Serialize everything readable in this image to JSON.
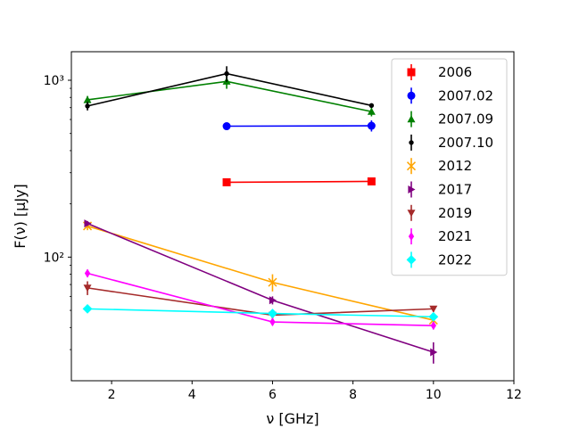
{
  "chart_data": {
    "type": "line",
    "title": "",
    "xlabel": "ν [GHz]",
    "ylabel": "F(ν) [μJy]",
    "xlim": [
      1,
      12
    ],
    "ylim": [
      20,
      1450
    ],
    "yscale": "log",
    "x_ticks": [
      2,
      4,
      6,
      8,
      10,
      12
    ],
    "x_tick_labels": [
      "2",
      "4",
      "6",
      "8",
      "10",
      "12"
    ],
    "y_ticks": [
      100,
      1000
    ],
    "y_tick_labels": [
      "10²",
      "10³"
    ],
    "legend_position": "top-right",
    "series": [
      {
        "name": "2006",
        "color": "#ff0000",
        "marker": "square",
        "x": [
          4.86,
          8.46
        ],
        "values": [
          265,
          268
        ],
        "errors": [
          12,
          12
        ]
      },
      {
        "name": "2007.02",
        "color": "#0000ff",
        "marker": "circle",
        "x": [
          4.86,
          8.46
        ],
        "values": [
          550,
          553
        ],
        "errors": [
          20,
          40
        ]
      },
      {
        "name": "2007.09",
        "color": "#008000",
        "marker": "triangle-up",
        "x": [
          1.4,
          4.86,
          8.46
        ],
        "values": [
          775,
          985,
          665
        ],
        "errors": [
          40,
          90,
          40
        ]
      },
      {
        "name": "2007.10",
        "color": "#000000",
        "marker": "point",
        "x": [
          1.4,
          4.86,
          8.46
        ],
        "values": [
          715,
          1090,
          720
        ],
        "errors": [
          40,
          110,
          20
        ]
      },
      {
        "name": "2012",
        "color": "#ffa500",
        "marker": "x",
        "x": [
          1.4,
          6.0,
          10.0
        ],
        "values": [
          150,
          72,
          44
        ],
        "errors": [
          8,
          8,
          4
        ]
      },
      {
        "name": "2017",
        "color": "#800080",
        "marker": "triangle-right",
        "x": [
          1.4,
          6.0,
          10.0
        ],
        "values": [
          155,
          57,
          29
        ],
        "errors": [
          5,
          3,
          4
        ]
      },
      {
        "name": "2019",
        "color": "#a52a2a",
        "marker": "triangle-down",
        "x": [
          1.4,
          6.0,
          10.0
        ],
        "values": [
          67,
          47,
          51
        ],
        "errors": [
          6,
          2,
          2
        ]
      },
      {
        "name": "2021",
        "color": "#ff00ff",
        "marker": "thin-diamond",
        "x": [
          1.4,
          6.0,
          10.0
        ],
        "values": [
          81,
          43,
          41
        ],
        "errors": [
          4,
          2,
          2
        ]
      },
      {
        "name": "2022",
        "color": "#00ffff",
        "marker": "diamond",
        "x": [
          1.4,
          6.0,
          10.0
        ],
        "values": [
          51,
          48,
          46
        ],
        "errors": [
          2,
          2,
          2
        ]
      }
    ]
  }
}
